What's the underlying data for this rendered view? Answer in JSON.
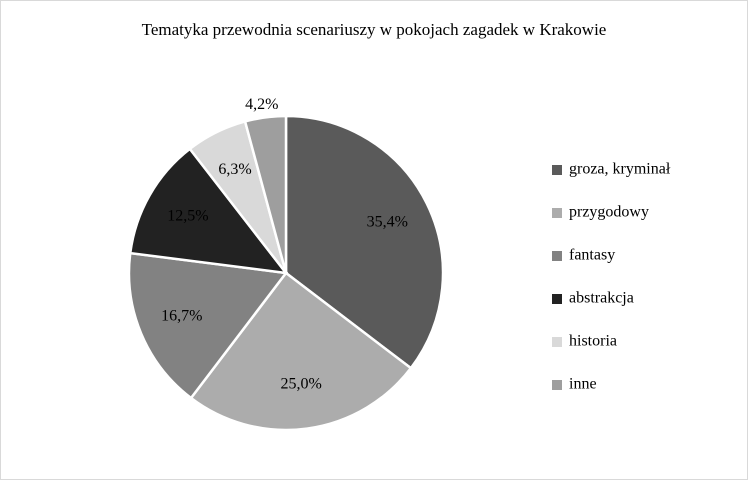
{
  "chart_data": {
    "type": "pie",
    "title": "Tematyka przewodnia scenariuszy w pokojach zagadek w Krakowie",
    "categories": [
      "groza, kryminał",
      "przygodowy",
      "fantasy",
      "abstrakcja",
      "historia",
      "inne"
    ],
    "values": [
      35.4,
      25.0,
      16.7,
      12.5,
      6.3,
      4.2
    ],
    "value_labels": [
      "35,4%",
      "25,0%",
      "16,7%",
      "12,5%",
      "6,3%",
      "4,2%"
    ],
    "colors": [
      "#5a5a5a",
      "#acacac",
      "#828282",
      "#222222",
      "#d9d9d9",
      "#9e9e9e"
    ],
    "legend": "right"
  }
}
